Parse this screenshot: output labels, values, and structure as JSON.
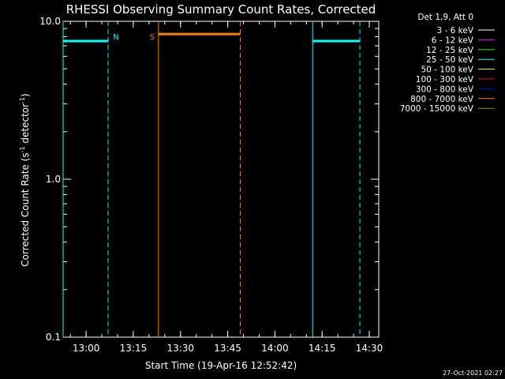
{
  "chart_data": {
    "type": "line",
    "title": "RHESSI Observing Summary Count Rates, Corrected",
    "xlabel": "Start Time (19-Apr-16 12:52:42)",
    "ylabel_main": "Corrected Count Rate (s",
    "ylabel_sup1": "-1",
    "ylabel_mid": " detector",
    "ylabel_sup2": "-1",
    "ylabel_end": ")",
    "yscale": "log",
    "ylim": [
      0.1,
      10.0
    ],
    "xlim": [
      "12:52:42",
      "14:33:00"
    ],
    "x_ticks": [
      "13:00",
      "13:15",
      "13:30",
      "13:45",
      "14:00",
      "14:15",
      "14:30"
    ],
    "y_ticks": [
      "0.1",
      "1.0",
      "10.0"
    ],
    "legend_header": "Det 1,9, Att 0",
    "legend": [
      {
        "label": "3 - 6 keV",
        "color": "#ffffff"
      },
      {
        "label": "6 - 12 keV",
        "color": "#ff00ff"
      },
      {
        "label": "12 - 25 keV",
        "color": "#00ff00"
      },
      {
        "label": "25 - 50 keV",
        "color": "#00ffff"
      },
      {
        "label": "50 - 100 keV",
        "color": "#ffff00"
      },
      {
        "label": "100 - 300 keV",
        "color": "#ff0000"
      },
      {
        "label": "300 - 800 keV",
        "color": "#0000ff"
      },
      {
        "label": "800 - 7000 keV",
        "color": "#ff8000"
      },
      {
        "label": "7000 - 15000 keV",
        "color": "#80a000"
      }
    ],
    "segments": [
      {
        "x_start": "12:52:42",
        "x_end": "13:07:00",
        "y": 7.5,
        "color": "#00ffff",
        "width": 3
      },
      {
        "x_start": "13:23:00",
        "x_end": "13:49:00",
        "y": 8.3,
        "color": "#ff8000",
        "width": 3
      },
      {
        "x_start": "14:12:00",
        "x_end": "14:27:00",
        "y": 7.5,
        "color": "#00ffff",
        "width": 3
      }
    ],
    "intervals": [
      {
        "start": "12:52:42",
        "end": "13:07:00",
        "color": "#00ffff",
        "label": "N",
        "label_at": "end"
      },
      {
        "start": "13:23:00",
        "end": "13:49:00",
        "color": "#ff8000",
        "label": "S",
        "label_at": "start"
      },
      {
        "start": "14:12:00",
        "end": "14:27:00",
        "color": "#00ffff",
        "label": "",
        "label_at": "end"
      }
    ],
    "footer": "27-Oct-2021 02:27"
  }
}
